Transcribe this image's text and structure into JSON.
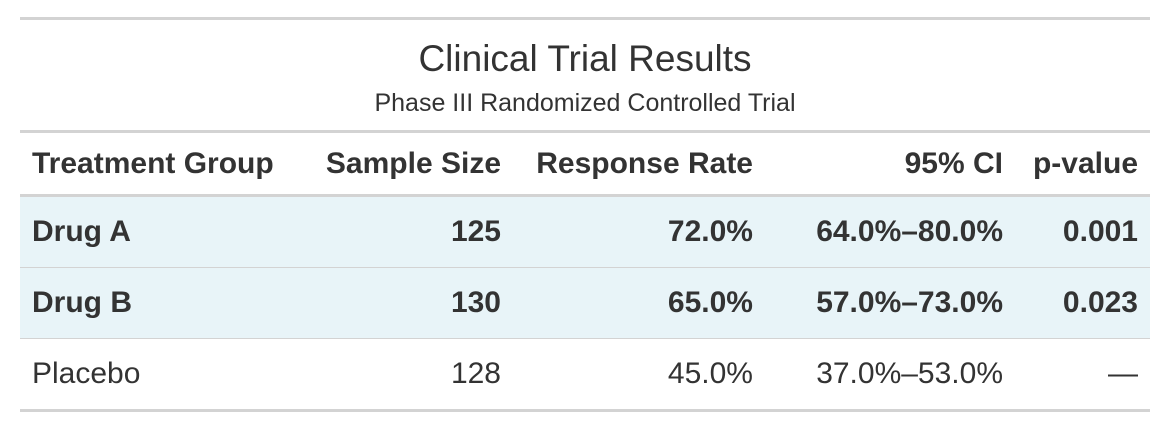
{
  "title": "Clinical Trial Results",
  "subtitle": "Phase III Randomized Controlled Trial",
  "columns": [
    "Treatment Group",
    "Sample Size",
    "Response Rate",
    "95% CI",
    "p-value"
  ],
  "rows": [
    {
      "group": "Drug A",
      "n": "125",
      "rate": "72.0%",
      "ci": "64.0%–80.0%",
      "p": "0.001",
      "highlight": true
    },
    {
      "group": "Drug B",
      "n": "130",
      "rate": "65.0%",
      "ci": "57.0%–73.0%",
      "p": "0.023",
      "highlight": true
    },
    {
      "group": "Placebo",
      "n": "128",
      "rate": "45.0%",
      "ci": "37.0%–53.0%",
      "p": "—",
      "highlight": false
    }
  ],
  "colors": {
    "highlight_row": "#e8f4f8",
    "rule": "#d3d3d3",
    "text": "#333333"
  }
}
